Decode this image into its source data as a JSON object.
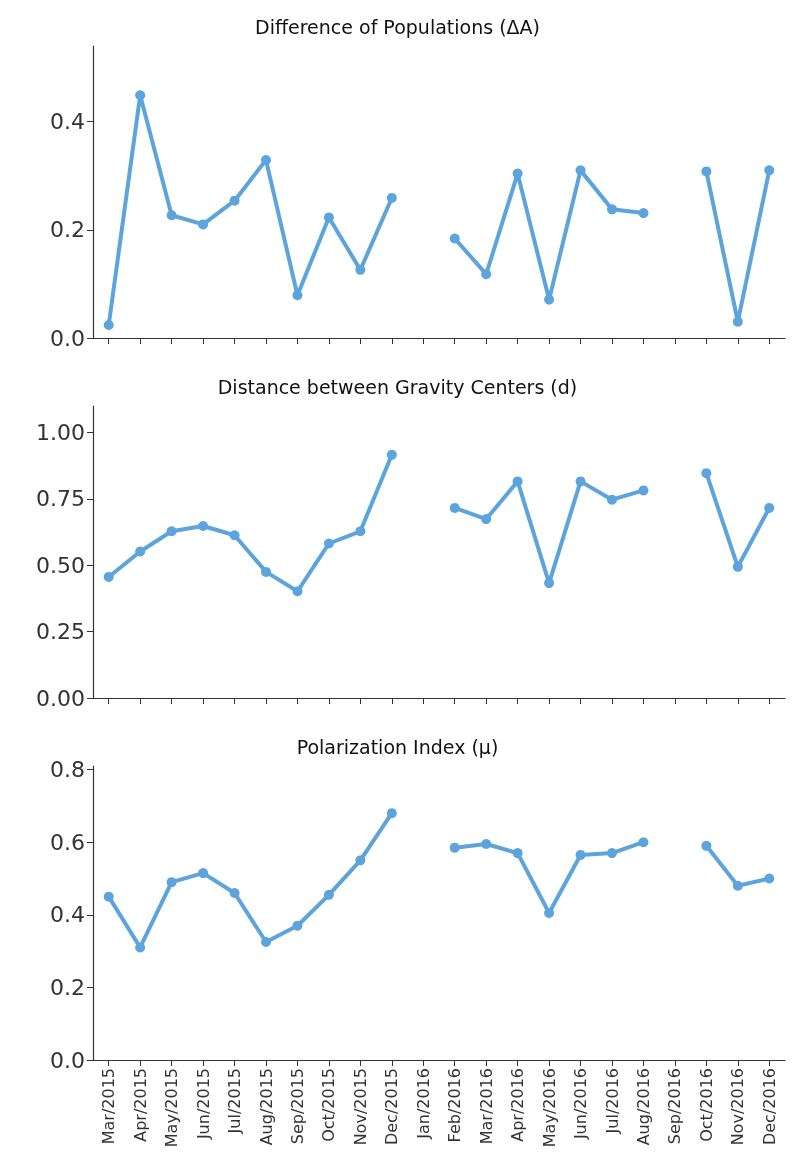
{
  "chart_data": [
    {
      "type": "line",
      "title": "Difference of Populations (ΔA)",
      "categories": [
        null,
        null,
        null,
        null,
        null,
        null,
        null,
        null,
        null,
        null,
        null,
        null,
        null,
        null,
        null,
        null,
        null,
        null,
        null,
        null,
        null,
        null
      ],
      "series": [
        {
          "color": "#5ca4db",
          "values": [
            0.024,
            0.449,
            0.227,
            0.21,
            0.254,
            0.329,
            0.079,
            0.223,
            0.126,
            0.259,
            null,
            0.184,
            0.118,
            0.304,
            0.071,
            0.31,
            0.238,
            0.231,
            null,
            0.308,
            0.03,
            0.31
          ]
        }
      ],
      "ylim": [
        0,
        0.54
      ],
      "yticks": [
        {
          "value": 0,
          "label": "0.0"
        },
        {
          "value": 0.2,
          "label": "0.2"
        },
        {
          "value": 0.4,
          "label": "0.4"
        }
      ],
      "marker": "circle",
      "tick_labels": "y",
      "grid": false
    },
    {
      "type": "line",
      "title": "Distance between Gravity Centers (d)",
      "categories": [
        null,
        null,
        null,
        null,
        null,
        null,
        null,
        null,
        null,
        null,
        null,
        null,
        null,
        null,
        null,
        null,
        null,
        null,
        null,
        null,
        null,
        null
      ],
      "series": [
        {
          "color": "#5ca4db",
          "values": [
            0.456,
            0.552,
            0.628,
            0.648,
            0.613,
            0.475,
            0.402,
            0.582,
            0.628,
            0.916,
            null,
            0.716,
            0.674,
            0.816,
            0.433,
            0.816,
            0.747,
            0.782,
            null,
            0.847,
            0.494,
            0.716
          ]
        }
      ],
      "ylim": [
        0,
        1.1
      ],
      "yticks": [
        {
          "value": 0,
          "label": "0.00"
        },
        {
          "value": 0.25,
          "label": "0.25"
        },
        {
          "value": 0.5,
          "label": "0.50"
        },
        {
          "value": 0.75,
          "label": "0.75"
        },
        {
          "value": 1,
          "label": "1.00"
        }
      ],
      "marker": "circle",
      "tick_labels": "y",
      "grid": false
    },
    {
      "type": "line",
      "title": "Polarization Index (μ)",
      "categories": [
        "Mar/2015",
        "Apr/2015",
        "May/2015",
        "Jun/2015",
        "Jul/2015",
        "Aug/2015",
        "Sep/2015",
        "Oct/2015",
        "Nov/2015",
        "Dec/2015",
        "Jan/2016",
        "Feb/2016",
        "Mar/2016",
        "Apr/2016",
        "May/2016",
        "Jun/2016",
        "Jul/2016",
        "Aug/2016",
        "Sep/2016",
        "Oct/2016",
        "Nov/2016",
        "Dec/2016"
      ],
      "series": [
        {
          "color": "#5ca4db",
          "values": [
            0.45,
            0.31,
            0.49,
            0.515,
            0.46,
            0.325,
            0.37,
            0.455,
            0.55,
            0.68,
            null,
            0.585,
            0.595,
            0.57,
            0.405,
            0.565,
            0.57,
            0.6,
            null,
            0.59,
            0.48,
            0.5
          ]
        }
      ],
      "ylim": [
        0,
        0.81
      ],
      "yticks": [
        {
          "value": 0,
          "label": "0.0"
        },
        {
          "value": 0.2,
          "label": "0.2"
        },
        {
          "value": 0.4,
          "label": "0.4"
        },
        {
          "value": 0.6,
          "label": "0.6"
        },
        {
          "value": 0.8,
          "label": "0.8"
        }
      ],
      "marker": "circle",
      "grid": false
    }
  ]
}
